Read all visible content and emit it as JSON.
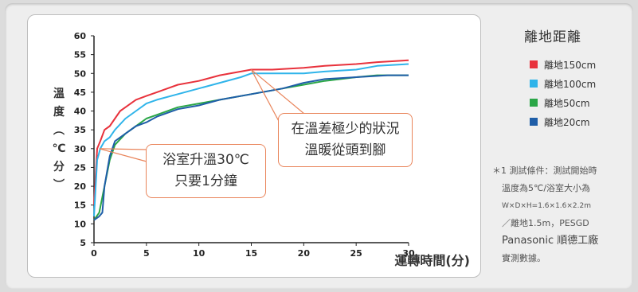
{
  "chart_data": {
    "type": "line",
    "ylabel": [
      "溫",
      "度",
      "︵",
      "℃",
      "分",
      "︶"
    ],
    "xlabel": "運轉時間(分)",
    "xlim": [
      0,
      30
    ],
    "ylim": [
      5,
      60
    ],
    "xticks": [
      0,
      5,
      10,
      15,
      20,
      25,
      30
    ],
    "yticks": [
      5,
      10,
      15,
      20,
      25,
      30,
      35,
      40,
      45,
      50,
      55,
      60
    ],
    "legend_title": "離地距離",
    "series": [
      {
        "name": "離地150cm",
        "color": "#e8323c",
        "x": [
          0,
          0.3,
          0.6,
          1,
          1.5,
          2,
          2.5,
          3,
          4,
          5,
          6,
          7,
          8,
          10,
          12,
          14,
          15,
          17,
          20,
          22,
          25,
          27,
          30
        ],
        "y": [
          15,
          30,
          32,
          35,
          36,
          38,
          40,
          41,
          43,
          44,
          45,
          46,
          47,
          48,
          49.5,
          50.5,
          51,
          51,
          51.5,
          52,
          52.5,
          53,
          53.5
        ]
      },
      {
        "name": "離地100cm",
        "color": "#2fb4ea",
        "x": [
          0,
          0.3,
          0.6,
          1,
          1.5,
          2,
          3,
          4,
          5,
          6,
          8,
          10,
          12,
          14,
          15,
          17,
          20,
          22,
          25,
          27,
          30
        ],
        "y": [
          12,
          27,
          30,
          32,
          33,
          35,
          38,
          40,
          42,
          43,
          44.5,
          46,
          47.5,
          49,
          50,
          50,
          50,
          50.5,
          51,
          52,
          52.5
        ]
      },
      {
        "name": "離地50cm",
        "color": "#2aa647",
        "x": [
          0,
          0.5,
          1,
          1.5,
          2,
          3,
          4,
          5,
          6,
          8,
          10,
          12,
          15,
          18,
          20,
          22,
          25,
          27,
          30
        ],
        "y": [
          11,
          13,
          20,
          27,
          31,
          34,
          36,
          38,
          39,
          41,
          42,
          43,
          44.5,
          46,
          47,
          48,
          49,
          49.5,
          49.5
        ]
      },
      {
        "name": "離地20cm",
        "color": "#1f5ea8",
        "x": [
          0,
          0.5,
          0.8,
          1,
          1.5,
          2,
          3,
          4,
          5,
          6,
          8,
          10,
          12,
          15,
          18,
          20,
          22,
          25,
          28,
          30
        ],
        "y": [
          11,
          12,
          13,
          20,
          28,
          32,
          34,
          36,
          37,
          38.5,
          40.5,
          41.5,
          43,
          44.5,
          46,
          47.5,
          48.5,
          49,
          49.5,
          49.5
        ]
      }
    ],
    "annotations": [
      {
        "lines": [
          "浴室升溫30℃",
          "只要1分鐘"
        ],
        "x": 0.5,
        "y": 30
      },
      {
        "lines": [
          "在溫差極少的狀況",
          "溫暖從頭到腳"
        ],
        "x": 15,
        "y": 51
      }
    ]
  },
  "note": {
    "line1": "＊1 測試條件：測試開始時",
    "line2": "溫度為5℃/浴室大小為",
    "line3": "W×D×H=1.6×1.6×2.2m",
    "line4": "／離地1.5m，PESGD",
    "line5": "Panasonic 順德工廠",
    "line6": "實測數據。"
  }
}
